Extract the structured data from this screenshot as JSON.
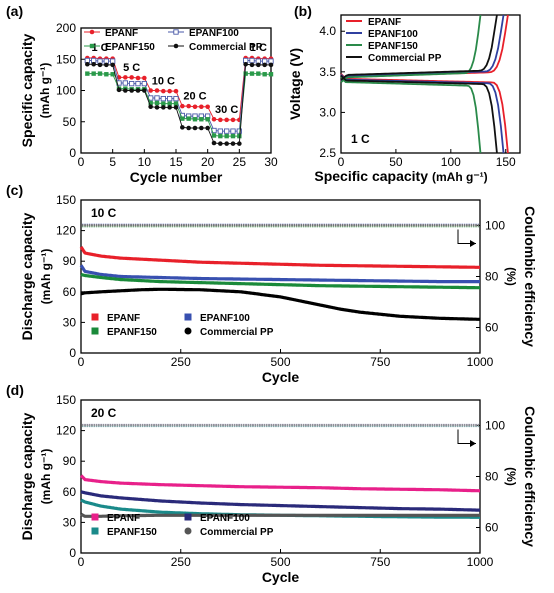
{
  "chart_data": [
    {
      "panel_label": "(a)",
      "type": "scatter",
      "xlabel": "Cycle number",
      "ylabel": "Specific capacity",
      "ylabel_unit": "(mAh g⁻¹)",
      "xlim": [
        0,
        30
      ],
      "ylim": [
        0,
        200
      ],
      "xticks": [
        0,
        5,
        10,
        15,
        20,
        25,
        30
      ],
      "yticks": [
        0,
        50,
        100,
        150,
        200
      ],
      "legend_position": "top",
      "series": [
        {
          "name": "EPANF",
          "color": "#e8202a",
          "marker": "circle-filled",
          "x": [
            1,
            2,
            3,
            4,
            5,
            6,
            7,
            8,
            9,
            10,
            11,
            12,
            13,
            14,
            15,
            16,
            17,
            18,
            19,
            20,
            21,
            22,
            23,
            24,
            25,
            26,
            27,
            28,
            29,
            30
          ],
          "y": [
            152,
            152,
            151,
            151,
            151,
            121,
            121,
            121,
            120,
            120,
            100,
            100,
            99,
            99,
            99,
            75,
            75,
            74,
            74,
            74,
            54,
            53,
            53,
            53,
            53,
            152,
            152,
            151,
            151,
            151
          ]
        },
        {
          "name": "EPANF100",
          "color": "#4a5aa8",
          "marker": "square-open",
          "x": [
            1,
            2,
            3,
            4,
            5,
            6,
            7,
            8,
            9,
            10,
            11,
            12,
            13,
            14,
            15,
            16,
            17,
            18,
            19,
            20,
            21,
            22,
            23,
            24,
            25,
            26,
            27,
            28,
            29,
            30
          ],
          "y": [
            148,
            148,
            147,
            147,
            147,
            112,
            112,
            111,
            111,
            111,
            88,
            88,
            87,
            87,
            87,
            60,
            59,
            59,
            59,
            59,
            36,
            35,
            35,
            35,
            35,
            148,
            148,
            147,
            147,
            147
          ]
        },
        {
          "name": "EPANF150",
          "color": "#2a9a4a",
          "marker": "square-filled",
          "x": [
            1,
            2,
            3,
            4,
            5,
            6,
            7,
            8,
            9,
            10,
            11,
            12,
            13,
            14,
            15,
            16,
            17,
            18,
            19,
            20,
            21,
            22,
            23,
            24,
            25,
            26,
            27,
            28,
            29,
            30
          ],
          "y": [
            127,
            127,
            127,
            126,
            126,
            103,
            103,
            102,
            102,
            102,
            80,
            80,
            79,
            79,
            79,
            55,
            55,
            54,
            54,
            54,
            28,
            27,
            27,
            27,
            27,
            127,
            127,
            127,
            126,
            126
          ]
        },
        {
          "name": "Commercial PP",
          "color": "#111111",
          "marker": "circle-filled",
          "x": [
            1,
            2,
            3,
            4,
            5,
            6,
            7,
            8,
            9,
            10,
            11,
            12,
            13,
            14,
            15,
            16,
            17,
            18,
            19,
            20,
            21,
            22,
            23,
            24,
            25,
            26,
            27,
            28,
            29,
            30
          ],
          "y": [
            142,
            142,
            141,
            141,
            141,
            101,
            100,
            100,
            100,
            100,
            74,
            73,
            73,
            73,
            73,
            41,
            40,
            40,
            40,
            40,
            16,
            15,
            15,
            15,
            15,
            142,
            141,
            141,
            141,
            141
          ]
        }
      ],
      "annotations": [
        {
          "text": "1 C",
          "x": 3,
          "y": 163
        },
        {
          "text": "5 C",
          "x": 8,
          "y": 131
        },
        {
          "text": "10 C",
          "x": 13,
          "y": 110
        },
        {
          "text": "20 C",
          "x": 18,
          "y": 86
        },
        {
          "text": "30 C",
          "x": 23,
          "y": 64
        },
        {
          "text": "1 C",
          "x": 28,
          "y": 163
        }
      ]
    },
    {
      "panel_label": "(b)",
      "type": "line",
      "xlabel": "Specific capacity",
      "xlabel_unit": "(mAh g⁻¹)",
      "ylabel": "Voltage (V)",
      "xlim": [
        0,
        163
      ],
      "ylim": [
        2.5,
        4.2
      ],
      "xticks": [
        0,
        50,
        100,
        150
      ],
      "yticks": [
        2.5,
        3.0,
        3.5,
        4.0
      ],
      "yticklabels": [
        "2.5",
        "3.0",
        "3.5",
        "4.0"
      ],
      "legend_position": "top-left",
      "annotation": "1 C",
      "series": [
        {
          "name": "EPANF",
          "color": "#e8202a",
          "capacity": 152
        },
        {
          "name": "EPANF100",
          "color": "#3040a0",
          "capacity": 148
        },
        {
          "name": "EPANF150",
          "color": "#2a8a4a",
          "capacity": 127
        },
        {
          "name": "Commercial PP",
          "color": "#111111",
          "capacity": 142
        }
      ]
    },
    {
      "panel_label": "(c)",
      "type": "scatter",
      "xlabel": "Cycle",
      "ylabel": "Discharge capacity",
      "ylabel_unit": "(mAh g⁻¹)",
      "y2label": "Coulombic efficiency",
      "y2label_unit": "(%)",
      "annotation": "10 C",
      "xlim": [
        0,
        1000
      ],
      "ylim": [
        0,
        150
      ],
      "y2lim": [
        50,
        110
      ],
      "xticks": [
        0,
        250,
        500,
        750,
        1000
      ],
      "yticks": [
        0,
        30,
        60,
        90,
        120,
        150
      ],
      "y2ticks": [
        60,
        80,
        100
      ],
      "legend_position": "bottom-left",
      "series": [
        {
          "name": "EPANF",
          "color": "#e8202a",
          "x": [
            0,
            10,
            50,
            100,
            200,
            300,
            400,
            500,
            600,
            700,
            800,
            900,
            1000
          ],
          "y": [
            104,
            98,
            95,
            93,
            91,
            89,
            88,
            87,
            86,
            85.5,
            85,
            84.5,
            84
          ]
        },
        {
          "name": "EPANF100",
          "color": "#3850b0",
          "x": [
            0,
            10,
            50,
            100,
            200,
            300,
            400,
            500,
            600,
            700,
            800,
            900,
            1000
          ],
          "y": [
            86,
            80,
            77,
            75,
            74,
            73,
            72.5,
            72,
            71.5,
            71,
            70.5,
            70,
            70
          ]
        },
        {
          "name": "EPANF150",
          "color": "#1a8a3a",
          "x": [
            0,
            10,
            50,
            100,
            200,
            300,
            400,
            500,
            600,
            700,
            800,
            900,
            1000
          ],
          "y": [
            77,
            76,
            74,
            72,
            70,
            69,
            68,
            67,
            66,
            65.5,
            65,
            64.5,
            64
          ]
        },
        {
          "name": "Commercial PP",
          "color": "#000000",
          "x": [
            0,
            10,
            50,
            100,
            150,
            200,
            300,
            400,
            500,
            550,
            600,
            650,
            700,
            750,
            800,
            850,
            900,
            950,
            1000
          ],
          "y": [
            58,
            59,
            60,
            61,
            62,
            62.5,
            62,
            60,
            55,
            51,
            47,
            43,
            40,
            38,
            36,
            35,
            34,
            33.5,
            33
          ]
        }
      ],
      "efficiency": [
        {
          "name": "EPANF",
          "color": "#e87070",
          "value": 100
        },
        {
          "name": "EPANF100",
          "color": "#7a88c8",
          "value": 100.3
        },
        {
          "name": "EPANF150",
          "color": "#70b080",
          "value": 99.7
        },
        {
          "name": "Commercial PP",
          "color": "#707070",
          "value": 100.1
        }
      ]
    },
    {
      "panel_label": "(d)",
      "type": "scatter",
      "xlabel": "Cycle",
      "ylabel": "Discharge capacity",
      "ylabel_unit": "(mAh g⁻¹)",
      "y2label": "Coulombic efficiency",
      "y2label_unit": "(%)",
      "annotation": "20 C",
      "xlim": [
        0,
        1000
      ],
      "ylim": [
        0,
        150
      ],
      "y2lim": [
        50,
        110
      ],
      "xticks": [
        0,
        250,
        500,
        750,
        1000
      ],
      "yticks": [
        0,
        30,
        60,
        90,
        120,
        150
      ],
      "y2ticks": [
        60,
        80,
        100
      ],
      "legend_position": "bottom-left",
      "series": [
        {
          "name": "EPANF",
          "color": "#e8208a",
          "x": [
            0,
            10,
            50,
            100,
            200,
            300,
            400,
            500,
            600,
            700,
            800,
            900,
            1000
          ],
          "y": [
            76,
            72,
            70,
            68.5,
            67,
            66,
            65,
            64.5,
            64,
            63,
            62.5,
            62,
            61
          ]
        },
        {
          "name": "EPANF100",
          "color": "#2a2a7a",
          "x": [
            0,
            10,
            50,
            100,
            200,
            300,
            400,
            500,
            600,
            700,
            800,
            900,
            1000
          ],
          "y": [
            60,
            59,
            56,
            54,
            51,
            49,
            47.5,
            46.5,
            45.5,
            44.5,
            43.5,
            43,
            42
          ]
        },
        {
          "name": "EPANF150",
          "color": "#1a8a8a",
          "x": [
            0,
            10,
            50,
            100,
            200,
            300,
            400,
            500,
            600,
            700,
            800,
            900,
            1000
          ],
          "y": [
            52,
            50,
            46,
            43,
            40,
            38.5,
            37.5,
            37,
            36.5,
            36,
            35.5,
            35.2,
            35
          ]
        },
        {
          "name": "Commercial PP",
          "color": "#555555",
          "x": [
            0,
            10,
            50,
            100,
            200,
            300,
            400,
            500,
            600,
            700,
            800,
            900,
            1000
          ],
          "y": [
            38,
            36,
            36,
            36.5,
            37,
            37,
            37,
            37,
            37,
            37,
            37,
            37,
            37
          ]
        }
      ],
      "efficiency": [
        {
          "name": "EPANF",
          "color": "#e870b0",
          "value": 100
        },
        {
          "name": "EPANF100",
          "color": "#8080b0",
          "value": 100.2
        },
        {
          "name": "EPANF150",
          "color": "#70b0b0",
          "value": 99.8
        },
        {
          "name": "Commercial PP",
          "color": "#909090",
          "value": 100.1
        }
      ]
    }
  ]
}
